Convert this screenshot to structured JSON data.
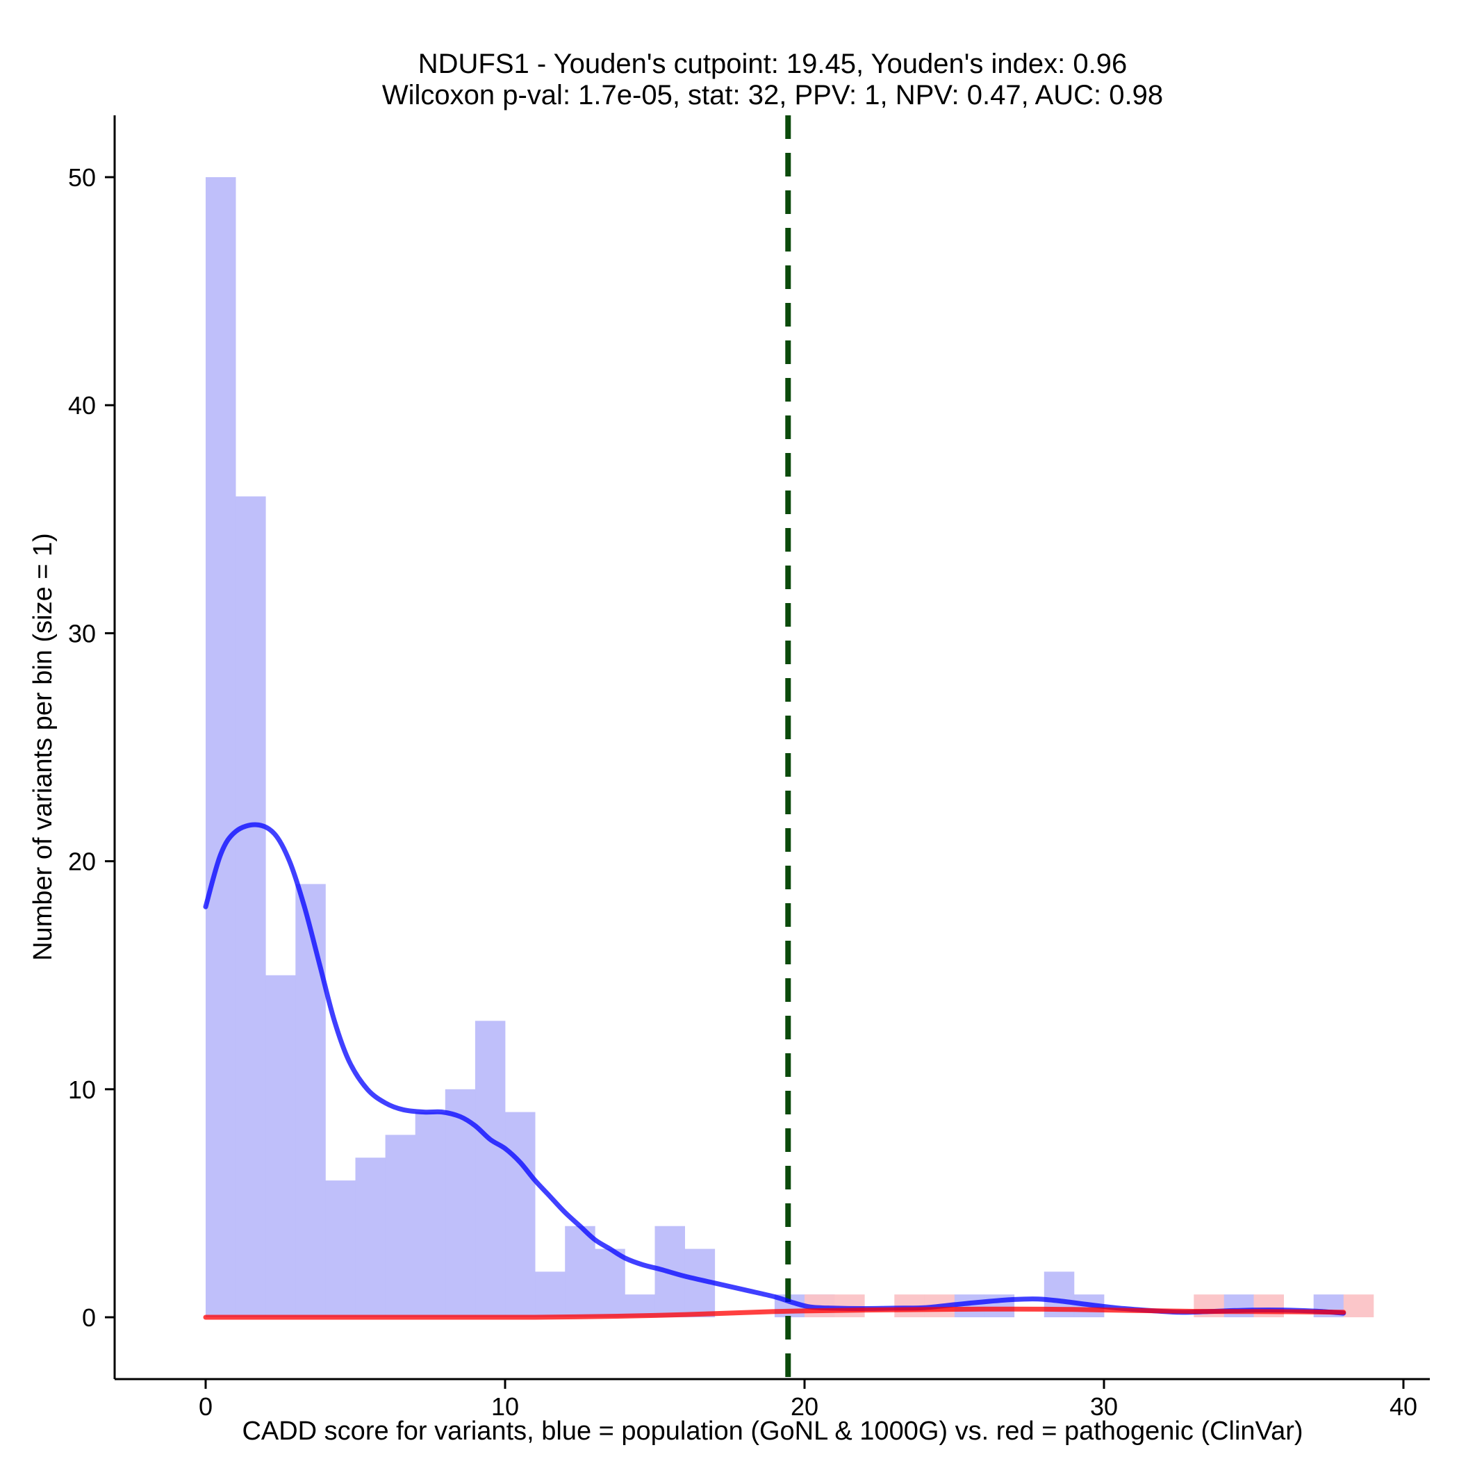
{
  "chart_data": {
    "type": "histogram",
    "title": "NDUFS1 - Youden's cutpoint: 19.45, Youden's index: 0.96",
    "subtitle": "Wilcoxon p-val: 1.7e-05, stat: 32, PPV: 1, NPV: 0.47, AUC: 0.98",
    "xlabel": "CADD score for variants, blue = population (GoNL & 1000G) vs. red = pathogenic (ClinVar)",
    "ylabel": "Number of variants per bin (size = 1)",
    "xlim": [
      -3,
      40.9
    ],
    "ylim": [
      -2.5,
      52.5
    ],
    "x_ticks": [
      0,
      10,
      20,
      30,
      40
    ],
    "y_ticks": [
      0,
      10,
      20,
      30,
      40,
      50
    ],
    "bin_size": 1,
    "cutpoint": 19.45,
    "series": [
      {
        "color": "#0000ff",
        "hist_color": "#bcbcfa",
        "bins": [
          {
            "start": 0,
            "count": 50
          },
          {
            "start": 1,
            "count": 36
          },
          {
            "start": 2,
            "count": 15
          },
          {
            "start": 3,
            "count": 19
          },
          {
            "start": 4,
            "count": 6
          },
          {
            "start": 5,
            "count": 7
          },
          {
            "start": 6,
            "count": 8
          },
          {
            "start": 7,
            "count": 9
          },
          {
            "start": 8,
            "count": 10
          },
          {
            "start": 9,
            "count": 13
          },
          {
            "start": 10,
            "count": 9
          },
          {
            "start": 11,
            "count": 2
          },
          {
            "start": 12,
            "count": 4
          },
          {
            "start": 13,
            "count": 3
          },
          {
            "start": 14,
            "count": 1
          },
          {
            "start": 15,
            "count": 4
          },
          {
            "start": 16,
            "count": 3
          },
          {
            "start": 19,
            "count": 1
          },
          {
            "start": 20,
            "count": 1
          },
          {
            "start": 25,
            "count": 1
          },
          {
            "start": 26,
            "count": 1
          },
          {
            "start": 28,
            "count": 2
          },
          {
            "start": 29,
            "count": 1
          },
          {
            "start": 34,
            "count": 1
          },
          {
            "start": 37,
            "count": 1
          }
        ],
        "density_curve": [
          [
            0,
            18
          ],
          [
            0.5,
            20.3
          ],
          [
            1,
            21.3
          ],
          [
            1.7,
            21.6
          ],
          [
            2.3,
            21.2
          ],
          [
            2.8,
            20
          ],
          [
            3.3,
            18
          ],
          [
            3.8,
            15.5
          ],
          [
            4.3,
            13
          ],
          [
            4.8,
            11.2
          ],
          [
            5.4,
            10
          ],
          [
            6,
            9.4
          ],
          [
            6.6,
            9.1
          ],
          [
            7.3,
            9
          ],
          [
            7.9,
            9
          ],
          [
            8.5,
            8.8
          ],
          [
            9,
            8.4
          ],
          [
            9.5,
            7.8
          ],
          [
            10,
            7.4
          ],
          [
            10.5,
            6.8
          ],
          [
            11,
            6
          ],
          [
            11.5,
            5.3
          ],
          [
            12,
            4.6
          ],
          [
            12.5,
            4
          ],
          [
            13,
            3.4
          ],
          [
            13.5,
            3
          ],
          [
            14,
            2.6
          ],
          [
            14.6,
            2.3
          ],
          [
            15.2,
            2.1
          ],
          [
            16,
            1.8
          ],
          [
            17,
            1.5
          ],
          [
            18,
            1.2
          ],
          [
            19,
            0.9
          ],
          [
            19.6,
            0.65
          ],
          [
            20.2,
            0.45
          ],
          [
            21,
            0.4
          ],
          [
            22,
            0.38
          ],
          [
            23,
            0.4
          ],
          [
            24,
            0.42
          ],
          [
            25,
            0.55
          ],
          [
            26,
            0.68
          ],
          [
            27,
            0.78
          ],
          [
            27.8,
            0.8
          ],
          [
            28.5,
            0.72
          ],
          [
            29.5,
            0.55
          ],
          [
            30.5,
            0.4
          ],
          [
            31.5,
            0.3
          ],
          [
            32.5,
            0.22
          ],
          [
            33.5,
            0.25
          ],
          [
            34.5,
            0.3
          ],
          [
            35.5,
            0.32
          ],
          [
            36.5,
            0.3
          ],
          [
            37.3,
            0.25
          ],
          [
            38,
            0.18
          ]
        ]
      },
      {
        "color": "#ff0000",
        "hist_color": "#fbc3c6",
        "bins": [
          {
            "start": 20,
            "count": 1
          },
          {
            "start": 21,
            "count": 1
          },
          {
            "start": 23,
            "count": 1
          },
          {
            "start": 24,
            "count": 1
          },
          {
            "start": 33,
            "count": 1
          },
          {
            "start": 35,
            "count": 1
          },
          {
            "start": 38,
            "count": 1
          }
        ],
        "density_curve": [
          [
            0,
            0
          ],
          [
            4,
            0
          ],
          [
            8,
            0
          ],
          [
            11,
            0
          ],
          [
            13,
            0.03
          ],
          [
            15,
            0.08
          ],
          [
            17,
            0.16
          ],
          [
            19,
            0.25
          ],
          [
            21,
            0.3
          ],
          [
            23,
            0.33
          ],
          [
            25,
            0.35
          ],
          [
            27,
            0.36
          ],
          [
            29,
            0.34
          ],
          [
            31,
            0.3
          ],
          [
            33,
            0.26
          ],
          [
            35,
            0.25
          ],
          [
            36.5,
            0.24
          ],
          [
            38,
            0.22
          ]
        ]
      }
    ],
    "grid": false,
    "legend": "none"
  }
}
